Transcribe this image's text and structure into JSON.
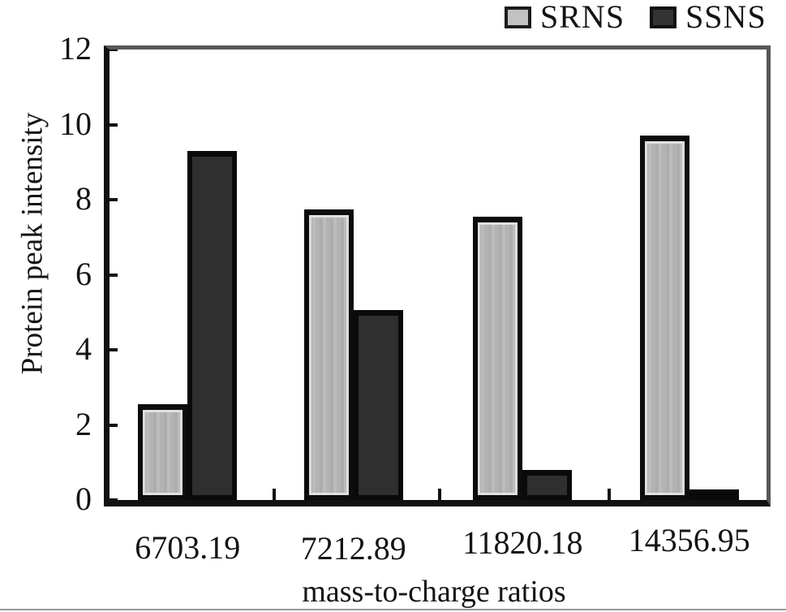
{
  "colors": {
    "axis": "#111111",
    "frame_gray": "#575757",
    "srns_fill": "#b8b8b8",
    "ssns_fill": "#2f2f2f",
    "text": "#141414"
  },
  "legend": {
    "items": [
      {
        "label": "SRNS",
        "fill": "#c2c2c2",
        "border": "#1c1c1c"
      },
      {
        "label": "SSNS",
        "fill": "#333333",
        "border": "#101010"
      }
    ]
  },
  "chart_data": {
    "type": "bar",
    "title": "",
    "categories": [
      "6703.19",
      "7212.89",
      "11820.18",
      "14356.95"
    ],
    "series": [
      {
        "name": "SRNS",
        "fill": "#b8b8b8",
        "values": [
          2.55,
          7.75,
          7.55,
          9.7
        ]
      },
      {
        "name": "SSNS",
        "fill": "#2f2f2f",
        "values": [
          9.3,
          5.05,
          0.8,
          0.2
        ]
      }
    ],
    "xlabel": "mass-to-charge ratios",
    "ylabel": "Protein peak intensity",
    "ylim": [
      0,
      12
    ],
    "yticks": [
      0,
      2,
      4,
      6,
      8,
      10,
      12
    ],
    "grid": false,
    "legend_position": "top-right"
  }
}
